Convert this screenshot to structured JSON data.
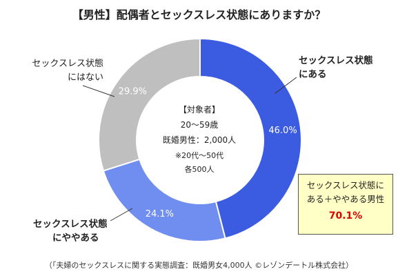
{
  "title": "【男性】配偶者とセックスレス状態にありますか？",
  "chart_data": {
    "type": "pie",
    "categories": [
      "セックスレス状態にある",
      "セックスレス状態にややある",
      "セックスレス状態にはない"
    ],
    "values": [
      46.0,
      24.1,
      29.9
    ],
    "value_labels": [
      "46.0%",
      "24.1%",
      "29.9%"
    ],
    "colors": [
      "#3b5be0",
      "#6f8ef0",
      "#bfbfbf"
    ],
    "labels": {
      "aru": [
        "セックスレス状態",
        "にある"
      ],
      "yaya": [
        "セックスレス状態",
        "にややある"
      ],
      "nai": [
        "セックスレス状態",
        "にはない"
      ]
    }
  },
  "center": {
    "line1": "【対象者】",
    "line2": "20～59歳",
    "line3": "既婚男性：2,000人",
    "line4": "※20代～50代",
    "line5": "各500人"
  },
  "callout": {
    "line1": "セックスレス状態に",
    "line2": "ある＋ややある男性",
    "value": "70.1%"
  },
  "source": "（「夫婦のセックスレスに関する実態調査：既婚男女4,000人 ©レゾンデートル株式会社）"
}
